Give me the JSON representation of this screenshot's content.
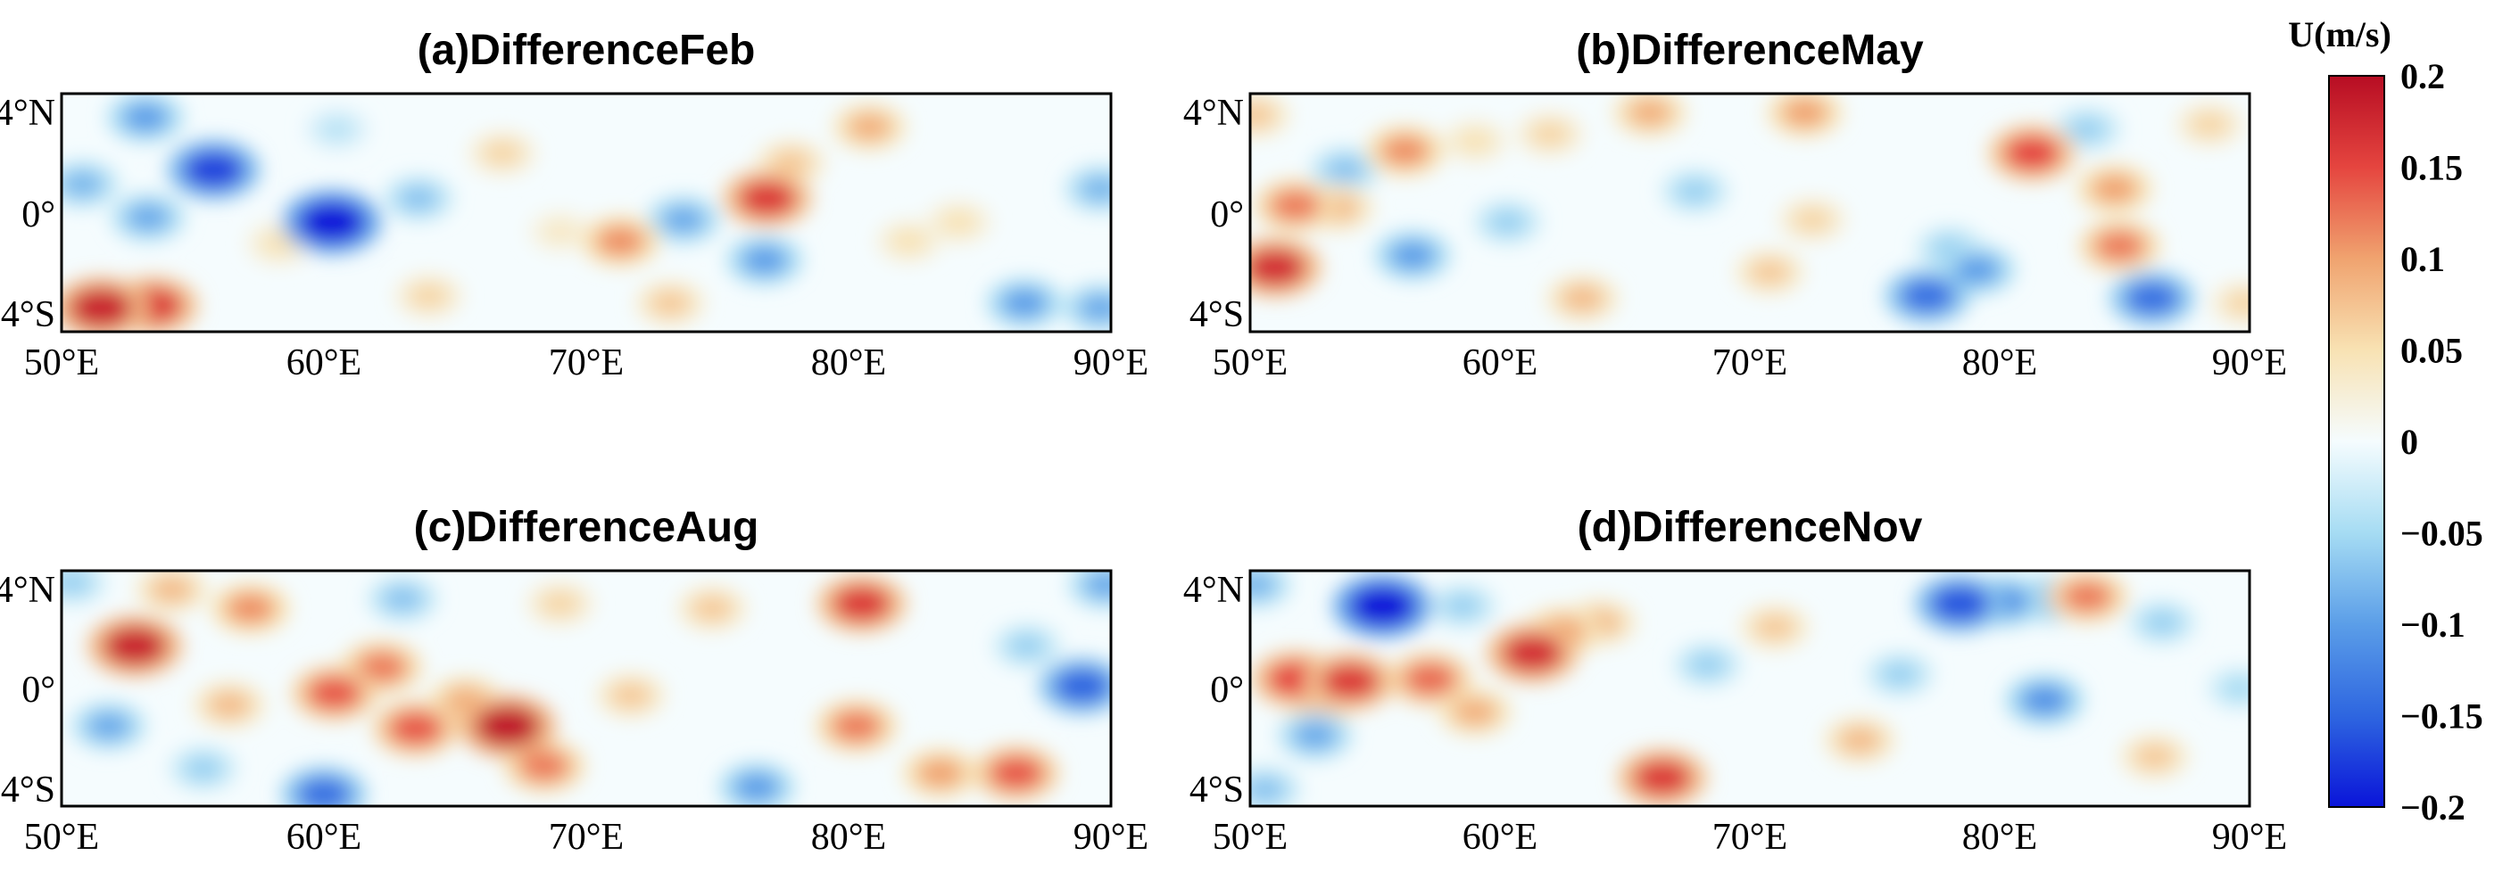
{
  "chart_data": [
    {
      "type": "heatmap",
      "title": "(a)DifferenceFeb",
      "xlabel": "",
      "ylabel": "",
      "xticks": [
        "50°E",
        "60°E",
        "70°E",
        "80°E",
        "90°E"
      ],
      "yticks": [
        "4°N",
        "0°",
        "4°S"
      ],
      "xlim": [
        50,
        90
      ],
      "ylim": [
        -5,
        5
      ],
      "blobs": [
        {
          "lon": 51.5,
          "lat": -4.0,
          "value": 0.18
        },
        {
          "lon": 53.5,
          "lat": -3.9,
          "value": 0.16
        },
        {
          "lon": 55.8,
          "lat": 1.8,
          "value": -0.17
        },
        {
          "lon": 53.2,
          "lat": 4.0,
          "value": -0.1
        },
        {
          "lon": 60.3,
          "lat": -0.4,
          "value": -0.2
        },
        {
          "lon": 50.8,
          "lat": 1.2,
          "value": -0.08
        },
        {
          "lon": 53.3,
          "lat": -0.2,
          "value": -0.09
        },
        {
          "lon": 63.6,
          "lat": 0.6,
          "value": -0.07
        },
        {
          "lon": 66.8,
          "lat": 2.5,
          "value": 0.06
        },
        {
          "lon": 71.3,
          "lat": -1.2,
          "value": 0.11
        },
        {
          "lon": 73.7,
          "lat": -0.3,
          "value": -0.09
        },
        {
          "lon": 76.9,
          "lat": 0.6,
          "value": 0.16
        },
        {
          "lon": 77.8,
          "lat": 2.1,
          "value": 0.07
        },
        {
          "lon": 76.8,
          "lat": -2.0,
          "value": -0.1
        },
        {
          "lon": 80.8,
          "lat": 3.6,
          "value": 0.09
        },
        {
          "lon": 86.7,
          "lat": -3.8,
          "value": -0.1
        },
        {
          "lon": 89.6,
          "lat": 1.0,
          "value": -0.08
        },
        {
          "lon": 73.2,
          "lat": -3.8,
          "value": 0.07
        },
        {
          "lon": 64.0,
          "lat": -3.5,
          "value": 0.06
        },
        {
          "lon": 58.3,
          "lat": -1.3,
          "value": 0.05
        },
        {
          "lon": 82.3,
          "lat": -1.2,
          "value": 0.05
        },
        {
          "lon": 84.2,
          "lat": -0.4,
          "value": 0.05
        },
        {
          "lon": 89.6,
          "lat": -4.0,
          "value": -0.09
        },
        {
          "lon": 69.0,
          "lat": -0.8,
          "value": 0.04
        },
        {
          "lon": 60.5,
          "lat": 3.5,
          "value": -0.04
        }
      ]
    },
    {
      "type": "heatmap",
      "title": "(b)DifferenceMay",
      "xlabel": "",
      "ylabel": "",
      "xticks": [
        "50°E",
        "60°E",
        "70°E",
        "80°E",
        "90°E"
      ],
      "yticks": [
        "4°N",
        "0°",
        "4°S"
      ],
      "xlim": [
        50,
        90
      ],
      "ylim": [
        -5,
        5
      ],
      "blobs": [
        {
          "lon": 51.0,
          "lat": -2.3,
          "value": 0.17
        },
        {
          "lon": 51.8,
          "lat": 0.3,
          "value": 0.12
        },
        {
          "lon": 53.5,
          "lat": 0.2,
          "value": 0.08
        },
        {
          "lon": 50.2,
          "lat": 4.1,
          "value": 0.07
        },
        {
          "lon": 53.8,
          "lat": 1.8,
          "value": -0.07
        },
        {
          "lon": 56.2,
          "lat": 2.6,
          "value": 0.11
        },
        {
          "lon": 56.5,
          "lat": -1.8,
          "value": -0.1
        },
        {
          "lon": 59.0,
          "lat": 3.0,
          "value": 0.05
        },
        {
          "lon": 60.3,
          "lat": -0.4,
          "value": -0.06
        },
        {
          "lon": 62.0,
          "lat": 3.3,
          "value": 0.06
        },
        {
          "lon": 66.0,
          "lat": 4.2,
          "value": 0.09
        },
        {
          "lon": 63.3,
          "lat": -3.6,
          "value": 0.08
        },
        {
          "lon": 67.8,
          "lat": 0.9,
          "value": -0.06
        },
        {
          "lon": 72.2,
          "lat": 4.2,
          "value": 0.1
        },
        {
          "lon": 70.8,
          "lat": -2.5,
          "value": 0.07
        },
        {
          "lon": 72.5,
          "lat": -0.3,
          "value": 0.06
        },
        {
          "lon": 77.1,
          "lat": -3.5,
          "value": -0.14
        },
        {
          "lon": 79.1,
          "lat": -2.4,
          "value": -0.1
        },
        {
          "lon": 81.3,
          "lat": 2.5,
          "value": 0.15
        },
        {
          "lon": 78.0,
          "lat": -1.5,
          "value": -0.06
        },
        {
          "lon": 84.6,
          "lat": 1.0,
          "value": 0.1
        },
        {
          "lon": 84.8,
          "lat": -1.4,
          "value": 0.12
        },
        {
          "lon": 86.1,
          "lat": -3.6,
          "value": -0.14
        },
        {
          "lon": 88.4,
          "lat": 3.7,
          "value": 0.06
        },
        {
          "lon": 83.5,
          "lat": 3.5,
          "value": -0.06
        },
        {
          "lon": 89.8,
          "lat": -3.8,
          "value": 0.06
        }
      ]
    },
    {
      "type": "heatmap",
      "title": "(c)DifferenceAug",
      "xlabel": "",
      "ylabel": "",
      "xticks": [
        "50°E",
        "60°E",
        "70°E",
        "80°E",
        "90°E"
      ],
      "yticks": [
        "4°N",
        "0°",
        "4°S"
      ],
      "xlim": [
        50,
        90
      ],
      "ylim": [
        -5,
        5
      ],
      "blobs": [
        {
          "lon": 52.8,
          "lat": 1.8,
          "value": 0.18
        },
        {
          "lon": 54.2,
          "lat": 4.2,
          "value": 0.08
        },
        {
          "lon": 51.8,
          "lat": -1.6,
          "value": -0.09
        },
        {
          "lon": 57.2,
          "lat": 3.4,
          "value": 0.11
        },
        {
          "lon": 56.4,
          "lat": -0.7,
          "value": 0.08
        },
        {
          "lon": 60.0,
          "lat": -4.5,
          "value": -0.14
        },
        {
          "lon": 60.4,
          "lat": -0.2,
          "value": 0.14
        },
        {
          "lon": 62.2,
          "lat": 0.9,
          "value": 0.12
        },
        {
          "lon": 63.5,
          "lat": -1.7,
          "value": 0.14
        },
        {
          "lon": 65.4,
          "lat": -0.5,
          "value": 0.09
        },
        {
          "lon": 67.0,
          "lat": -1.6,
          "value": 0.19
        },
        {
          "lon": 68.4,
          "lat": -3.3,
          "value": 0.12
        },
        {
          "lon": 63.0,
          "lat": 3.8,
          "value": -0.07
        },
        {
          "lon": 69.0,
          "lat": 3.6,
          "value": 0.06
        },
        {
          "lon": 71.7,
          "lat": -0.3,
          "value": 0.07
        },
        {
          "lon": 74.8,
          "lat": 3.4,
          "value": 0.07
        },
        {
          "lon": 76.5,
          "lat": -4.2,
          "value": -0.1
        },
        {
          "lon": 80.5,
          "lat": 3.6,
          "value": 0.16
        },
        {
          "lon": 80.3,
          "lat": -1.6,
          "value": 0.12
        },
        {
          "lon": 83.5,
          "lat": -3.6,
          "value": 0.1
        },
        {
          "lon": 86.4,
          "lat": -3.6,
          "value": 0.14
        },
        {
          "lon": 88.9,
          "lat": 0.1,
          "value": -0.15
        },
        {
          "lon": 86.8,
          "lat": 1.8,
          "value": -0.06
        },
        {
          "lon": 89.8,
          "lat": 4.4,
          "value": -0.09
        },
        {
          "lon": 50.4,
          "lat": 4.5,
          "value": -0.06
        },
        {
          "lon": 55.4,
          "lat": -3.4,
          "value": -0.06
        }
      ]
    },
    {
      "type": "heatmap",
      "title": "(d)DifferenceNov",
      "xlabel": "",
      "ylabel": "",
      "xticks": [
        "50°E",
        "60°E",
        "70°E",
        "80°E",
        "90°E"
      ],
      "yticks": [
        "4°N",
        "0°",
        "4°S"
      ],
      "xlim": [
        50,
        90
      ],
      "ylim": [
        -5,
        5
      ],
      "blobs": [
        {
          "lon": 55.3,
          "lat": 3.5,
          "value": -0.2
        },
        {
          "lon": 51.8,
          "lat": 0.4,
          "value": 0.15
        },
        {
          "lon": 54.0,
          "lat": 0.3,
          "value": 0.16
        },
        {
          "lon": 52.8,
          "lat": -0.7,
          "value": 0.08
        },
        {
          "lon": 57.2,
          "lat": 0.4,
          "value": 0.13
        },
        {
          "lon": 59.0,
          "lat": -1.0,
          "value": 0.09
        },
        {
          "lon": 61.3,
          "lat": 1.5,
          "value": 0.17
        },
        {
          "lon": 62.5,
          "lat": 2.4,
          "value": 0.1
        },
        {
          "lon": 64.0,
          "lat": 2.8,
          "value": 0.08
        },
        {
          "lon": 52.6,
          "lat": -2.0,
          "value": -0.09
        },
        {
          "lon": 50.2,
          "lat": 4.4,
          "value": -0.08
        },
        {
          "lon": 58.5,
          "lat": 3.5,
          "value": -0.06
        },
        {
          "lon": 66.5,
          "lat": -3.8,
          "value": 0.16
        },
        {
          "lon": 68.3,
          "lat": 1.0,
          "value": -0.06
        },
        {
          "lon": 71.0,
          "lat": 2.6,
          "value": 0.07
        },
        {
          "lon": 74.4,
          "lat": -2.2,
          "value": 0.08
        },
        {
          "lon": 78.4,
          "lat": 3.6,
          "value": -0.16
        },
        {
          "lon": 80.2,
          "lat": 3.7,
          "value": -0.11
        },
        {
          "lon": 82.1,
          "lat": 3.8,
          "value": -0.09
        },
        {
          "lon": 83.5,
          "lat": 3.9,
          "value": 0.12
        },
        {
          "lon": 81.8,
          "lat": -0.5,
          "value": -0.11
        },
        {
          "lon": 86.2,
          "lat": -2.9,
          "value": 0.07
        },
        {
          "lon": 89.6,
          "lat": 0.0,
          "value": -0.05
        },
        {
          "lon": 86.5,
          "lat": 2.8,
          "value": -0.06
        },
        {
          "lon": 50.6,
          "lat": -4.3,
          "value": -0.07
        },
        {
          "lon": 76.0,
          "lat": 0.6,
          "value": -0.06
        }
      ]
    }
  ],
  "colorbar": {
    "title": "U(m/s)",
    "vmin": -0.2,
    "vmax": 0.2,
    "labels": [
      "0.2",
      "0.15",
      "0.1",
      "0.05",
      "0",
      "-0.05",
      "-0.1",
      "-0.15",
      "-0.2"
    ],
    "colormap": "RdBu_r",
    "stops": [
      {
        "v": -0.2,
        "color": "#0a14d9"
      },
      {
        "v": -0.15,
        "color": "#2e66e0"
      },
      {
        "v": -0.1,
        "color": "#5b9ee8"
      },
      {
        "v": -0.05,
        "color": "#a6dcf3"
      },
      {
        "v": 0.0,
        "color": "#f5fcfe"
      },
      {
        "v": 0.05,
        "color": "#f8e2b3"
      },
      {
        "v": 0.1,
        "color": "#f0a36f"
      },
      {
        "v": 0.15,
        "color": "#e5453f"
      },
      {
        "v": 0.2,
        "color": "#b70d23"
      }
    ]
  }
}
